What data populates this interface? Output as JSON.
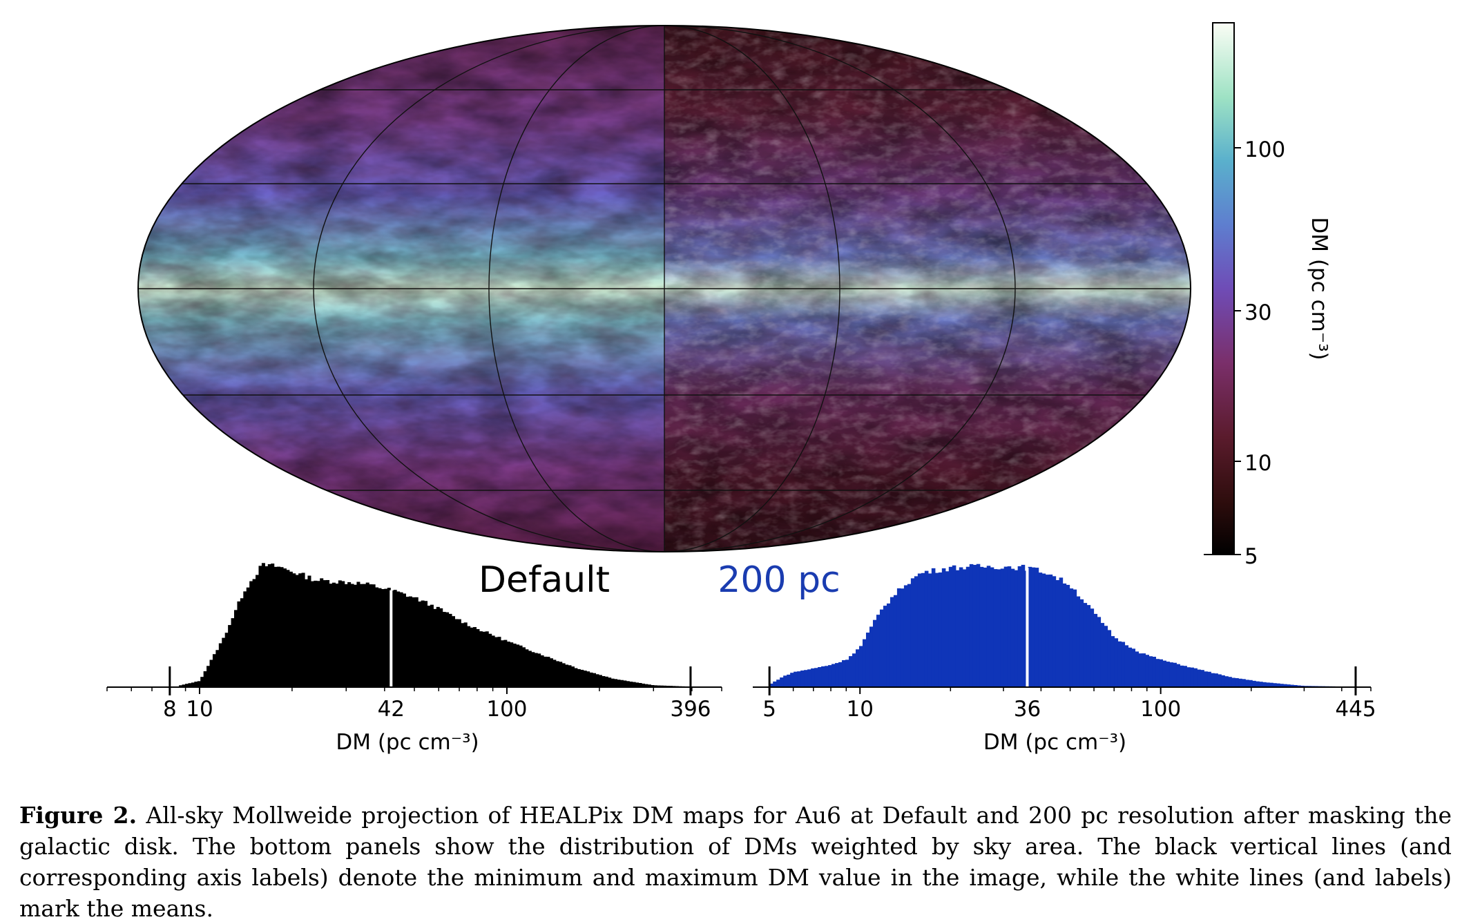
{
  "figure": {
    "panel_labels": {
      "left": "Default",
      "right": "200 pc"
    },
    "colors": {
      "map_colormap": [
        "#0b0505",
        "#3a1414",
        "#6a1f3c",
        "#7e3c86",
        "#6f5cc4",
        "#5d8fd0",
        "#7fcbd0",
        "#c6efcd",
        "#f7fbf4"
      ],
      "default_hist": "#000000",
      "hist_200pc": "#0f35b8",
      "mean_line": "#ffffff",
      "label_200pc": "#1a3cb0"
    },
    "colorbar": {
      "label": "DM (pc cm⁻³)",
      "ticks": [
        "100",
        "30",
        "10",
        "5"
      ],
      "scale": "log",
      "range": [
        5,
        300
      ]
    },
    "caption": {
      "label": "Figure 2.",
      "text": "All-sky Mollweide projection of HEALPix DM maps for Au6 at Default and 200 pc resolution after masking the galactic disk. The bottom panels show the distribution of DMs weighted by sky area. The black vertical lines (and corresponding axis labels) denote the minimum and maximum DM value in the image, while the white lines (and labels) mark the means."
    }
  },
  "chart_data": [
    {
      "type": "bar",
      "name": "Default",
      "xlabel": "DM (pc cm⁻³)",
      "xscale": "log",
      "tick_labels": [
        "8 10",
        "42",
        "100",
        "396"
      ],
      "min": 8,
      "mean": 42,
      "max": 396,
      "xlim": [
        5,
        500
      ],
      "curve": [
        [
          8.5,
          0.01
        ],
        [
          10,
          0.05
        ],
        [
          12,
          0.4
        ],
        [
          14,
          0.78
        ],
        [
          16,
          0.98
        ],
        [
          18,
          0.97
        ],
        [
          20,
          0.93
        ],
        [
          24,
          0.86
        ],
        [
          28,
          0.85
        ],
        [
          32,
          0.84
        ],
        [
          36,
          0.82
        ],
        [
          42,
          0.78
        ],
        [
          50,
          0.72
        ],
        [
          60,
          0.63
        ],
        [
          75,
          0.5
        ],
        [
          100,
          0.37
        ],
        [
          130,
          0.26
        ],
        [
          170,
          0.15
        ],
        [
          220,
          0.07
        ],
        [
          300,
          0.015
        ],
        [
          396,
          0.004
        ]
      ]
    },
    {
      "type": "bar",
      "name": "200 pc",
      "xlabel": "DM (pc cm⁻³)",
      "xscale": "log",
      "tick_labels": [
        "5",
        "10",
        "36",
        "100",
        "445"
      ],
      "min": 5,
      "mean": 36,
      "max": 445,
      "xlim": [
        4.4,
        500
      ],
      "curve": [
        [
          5,
          0.02
        ],
        [
          5.5,
          0.08
        ],
        [
          6,
          0.12
        ],
        [
          7,
          0.15
        ],
        [
          8,
          0.18
        ],
        [
          9,
          0.22
        ],
        [
          10,
          0.32
        ],
        [
          11,
          0.5
        ],
        [
          12,
          0.65
        ],
        [
          14,
          0.82
        ],
        [
          16,
          0.92
        ],
        [
          20,
          0.96
        ],
        [
          25,
          0.97
        ],
        [
          30,
          0.97
        ],
        [
          36,
          0.96
        ],
        [
          42,
          0.92
        ],
        [
          50,
          0.82
        ],
        [
          60,
          0.6
        ],
        [
          70,
          0.4
        ],
        [
          85,
          0.28
        ],
        [
          100,
          0.22
        ],
        [
          130,
          0.15
        ],
        [
          170,
          0.08
        ],
        [
          220,
          0.04
        ],
        [
          300,
          0.01
        ],
        [
          445,
          0.003
        ]
      ]
    }
  ]
}
